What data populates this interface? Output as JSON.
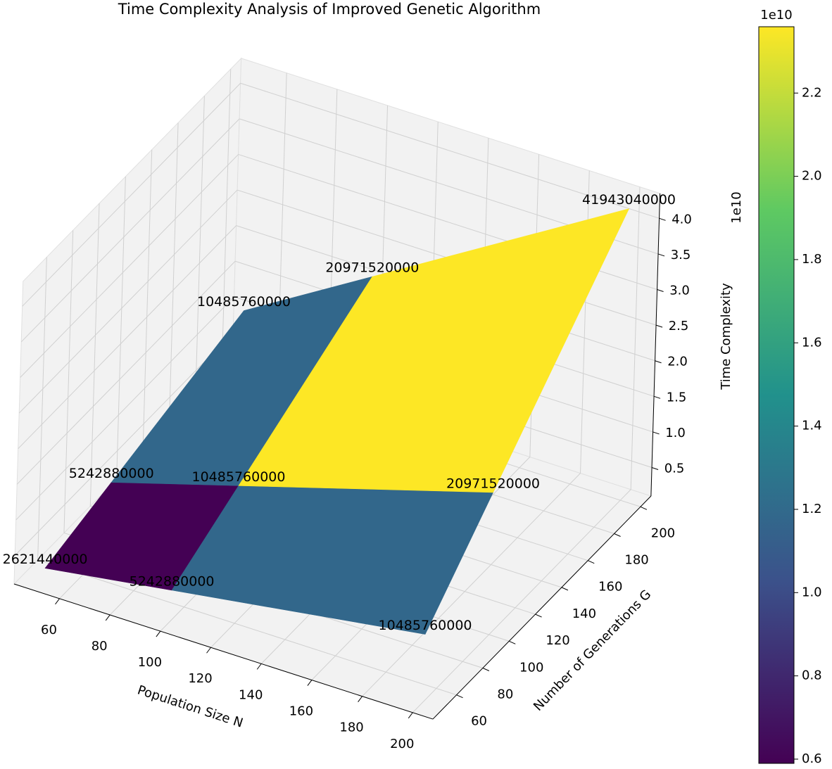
{
  "chart_data": {
    "type": "surface3d",
    "title": "Time Complexity Analysis of Improved Genetic Algorithm",
    "xlabel": "Population Size N",
    "ylabel": "Number of Generations G",
    "zlabel": "Time Complexity",
    "z_offset_label": "1e10",
    "x": [
      50,
      100,
      200
    ],
    "y": [
      50,
      100,
      200
    ],
    "z": [
      [
        2621440000,
        5242880000,
        10485760000
      ],
      [
        5242880000,
        10485760000,
        20971520000
      ],
      [
        10485760000,
        20971520000,
        41943040000
      ]
    ],
    "xlim": [
      42,
      208
    ],
    "ylim": [
      42,
      208
    ],
    "zlim": [
      1000000000,
      43500000000
    ],
    "xticks": [
      60,
      80,
      100,
      120,
      140,
      160,
      180,
      200
    ],
    "yticks": [
      60,
      80,
      100,
      120,
      140,
      160,
      180,
      200
    ],
    "zticks": [
      {
        "value": 5000000000,
        "label": "0.5"
      },
      {
        "value": 10000000000,
        "label": "1.0"
      },
      {
        "value": 15000000000,
        "label": "1.5"
      },
      {
        "value": 20000000000,
        "label": "2.0"
      },
      {
        "value": 25000000000,
        "label": "2.5"
      },
      {
        "value": 30000000000,
        "label": "3.0"
      },
      {
        "value": 35000000000,
        "label": "3.5"
      },
      {
        "value": 40000000000,
        "label": "4.0"
      }
    ],
    "grid": true,
    "colormap": [
      "#440154",
      "#3b528b",
      "#21918c",
      "#5ec962",
      "#fde725"
    ],
    "colorbar": {
      "offset_label": "1e10",
      "clim": [
        5898240000,
        23592960000
      ],
      "ticks": [
        {
          "value": 6000000000,
          "label": "0.6"
        },
        {
          "value": 8000000000,
          "label": "0.8"
        },
        {
          "value": 10000000000,
          "label": "1.0"
        },
        {
          "value": 12000000000,
          "label": "1.2"
        },
        {
          "value": 14000000000,
          "label": "1.4"
        },
        {
          "value": 16000000000,
          "label": "1.6"
        },
        {
          "value": 18000000000,
          "label": "1.8"
        },
        {
          "value": 20000000000,
          "label": "2.0"
        },
        {
          "value": 22000000000,
          "label": "2.2"
        }
      ]
    }
  }
}
